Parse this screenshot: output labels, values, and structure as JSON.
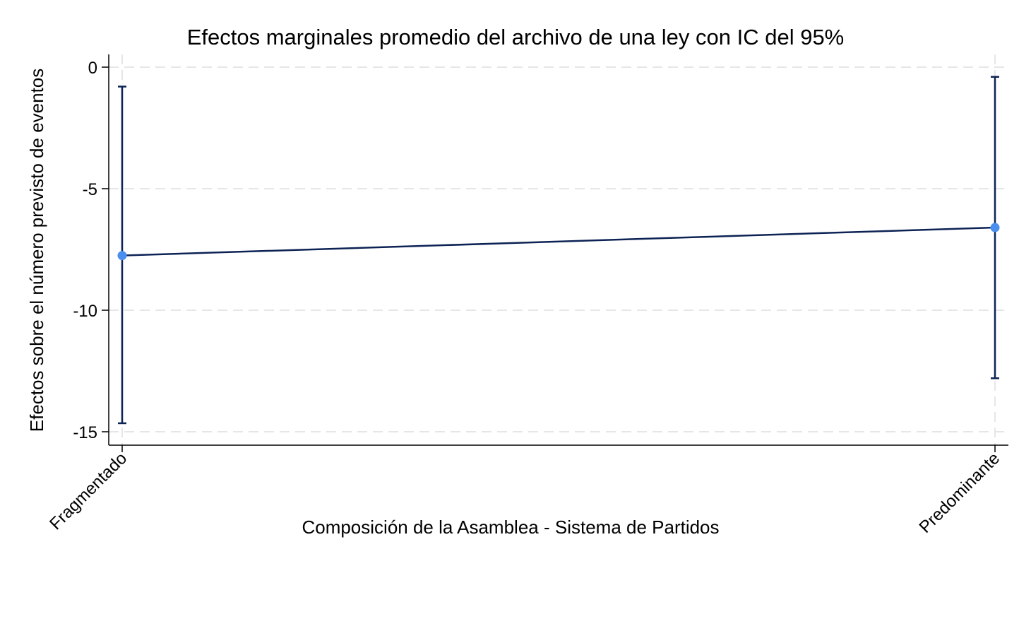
{
  "chart_data": {
    "type": "line",
    "title": "Efectos marginales promedio del archivo de una ley con IC del 95%",
    "xlabel": "Composición de la Asamblea - Sistema de Partidos",
    "ylabel": "Efectos sobre el número previsto de eventos",
    "categories": [
      "Fragmentado",
      "Predominante"
    ],
    "series": [
      {
        "values": [
          -7.75,
          -6.6
        ],
        "ci_lower": [
          -14.65,
          -12.8
        ],
        "ci_upper": [
          -0.8,
          -0.4
        ]
      }
    ],
    "yticks": [
      0,
      -5,
      -10,
      -15
    ],
    "ytick_labels": [
      "0",
      "-5",
      "-10",
      "-15"
    ],
    "ylim": [
      -15.5,
      0.55
    ],
    "grid": true,
    "colors": {
      "line": "#0d2355",
      "marker": "#4a8ef0",
      "grid": "#e6e6e6",
      "axis": "#000000"
    }
  }
}
